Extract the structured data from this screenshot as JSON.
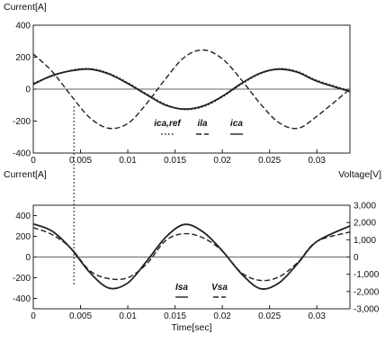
{
  "chart_data": [
    {
      "type": "line",
      "ylabel": "Current[A]",
      "xlabel": "",
      "xlim": [
        0,
        0.0335
      ],
      "ylim": [
        -400,
        400
      ],
      "x_ticks": [
        0,
        0.005,
        0.01,
        0.015,
        0.02,
        0.025,
        0.03
      ],
      "x_tick_labels": [
        "0",
        "0.005",
        "0.01",
        "0.015",
        "0.02",
        "0.025",
        "0.03"
      ],
      "y_ticks": [
        -400,
        -200,
        0,
        200,
        400
      ],
      "y_tick_labels": [
        "-400",
        "-200",
        "0",
        "200",
        "400"
      ],
      "legend_placement": "bottom-center",
      "grid": false,
      "series": [
        {
          "name": "ica,ref",
          "style": "dotted",
          "color": "#222222",
          "x": [
            0,
            0.002,
            0.004,
            0.006,
            0.008,
            0.01,
            0.012,
            0.014,
            0.016,
            0.018,
            0.02,
            0.022,
            0.024,
            0.026,
            0.028,
            0.03,
            0.0335
          ],
          "y": [
            40,
            80,
            118,
            128,
            100,
            40,
            -30,
            -95,
            -128,
            -110,
            -50,
            30,
            95,
            128,
            110,
            55,
            -10
          ]
        },
        {
          "name": "ila",
          "style": "dashed",
          "color": "#222222",
          "x": [
            0,
            0.002,
            0.004,
            0.006,
            0.008,
            0.01,
            0.012,
            0.014,
            0.016,
            0.018,
            0.02,
            0.022,
            0.024,
            0.026,
            0.028,
            0.03,
            0.0335
          ],
          "y": [
            220,
            110,
            -40,
            -180,
            -245,
            -215,
            -90,
            65,
            200,
            245,
            190,
            60,
            -90,
            -210,
            -245,
            -170,
            0
          ]
        },
        {
          "name": "ica",
          "style": "solid",
          "color": "#222222",
          "x": [
            0,
            0.002,
            0.004,
            0.006,
            0.008,
            0.01,
            0.012,
            0.014,
            0.016,
            0.018,
            0.02,
            0.022,
            0.024,
            0.026,
            0.028,
            0.03,
            0.0335
          ],
          "y": [
            30,
            85,
            115,
            125,
            95,
            35,
            -35,
            -100,
            -125,
            -105,
            -45,
            35,
            100,
            125,
            105,
            50,
            -15
          ]
        }
      ]
    },
    {
      "type": "line",
      "ylabel": "Current[A]",
      "y2label": "Voltage[V]",
      "xlabel": "Time[sec]",
      "xlim": [
        0,
        0.0335
      ],
      "ylim": [
        -500,
        500
      ],
      "y2lim": [
        -3000,
        3000
      ],
      "x_ticks": [
        0,
        0.005,
        0.01,
        0.015,
        0.02,
        0.025,
        0.03
      ],
      "x_tick_labels": [
        "0",
        "0.005",
        "0.01",
        "0.015",
        "0.02",
        "0.025",
        "0.03"
      ],
      "y_ticks": [
        -400,
        -200,
        0,
        200,
        400
      ],
      "y_tick_labels": [
        "-400",
        "-200",
        "0",
        "200",
        "400"
      ],
      "y2_ticks": [
        -3000,
        -2000,
        -1000,
        0,
        1000,
        2000,
        3000
      ],
      "y2_tick_labels": [
        "-3,000",
        "-2,000",
        "-1,000",
        "0",
        "1,000",
        "2,000",
        "3,000"
      ],
      "legend_placement": "bottom-center",
      "grid": false,
      "series": [
        {
          "name": "Isa",
          "style": "solid",
          "axis": "left",
          "color": "#222222",
          "x": [
            0,
            0.002,
            0.004,
            0.006,
            0.008,
            0.01,
            0.012,
            0.014,
            0.016,
            0.018,
            0.02,
            0.022,
            0.024,
            0.026,
            0.028,
            0.03,
            0.0335
          ],
          "y": [
            320,
            250,
            80,
            -150,
            -300,
            -250,
            -40,
            190,
            315,
            240,
            60,
            -160,
            -305,
            -250,
            -60,
            150,
            300
          ]
        },
        {
          "name": "Vsa",
          "style": "dashed",
          "axis": "right",
          "color": "#222222",
          "x": [
            0,
            0.002,
            0.004,
            0.006,
            0.008,
            0.01,
            0.012,
            0.014,
            0.016,
            0.018,
            0.02,
            0.022,
            0.024,
            0.026,
            0.028,
            0.03,
            0.0335
          ],
          "y": [
            1700,
            1300,
            500,
            -800,
            -1250,
            -1200,
            -400,
            950,
            1350,
            1100,
            350,
            -900,
            -1350,
            -1150,
            -300,
            900,
            1450
          ]
        }
      ]
    }
  ],
  "annotation": {
    "marker_x": 0.0043
  }
}
